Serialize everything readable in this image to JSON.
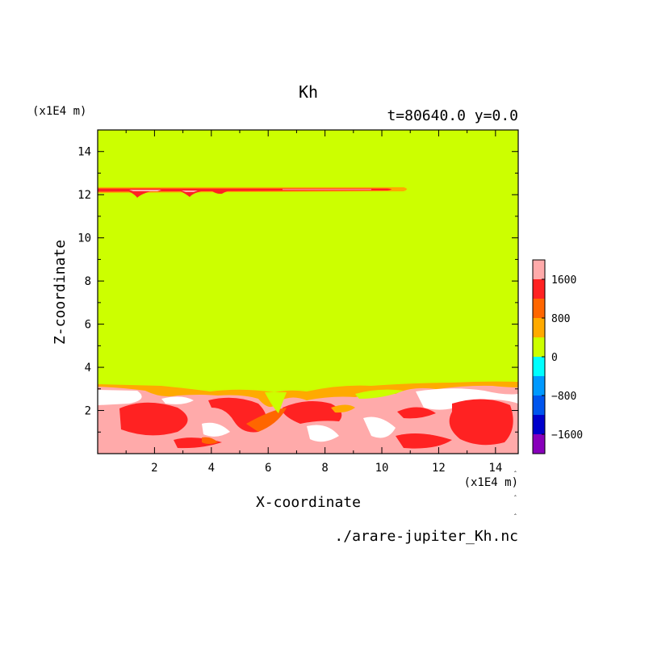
{
  "chart_data": {
    "type": "heatmap",
    "title": "Kh",
    "subtitle": "t=80640.0 y=0.0",
    "xlabel": "X-coordinate",
    "ylabel": "Z-coordinate",
    "x_unit": "(x1E4 m)",
    "y_unit": "(x1E4 m)",
    "footer": "./arare-jupiter_Kh.nc",
    "xlim": [
      0,
      14.8
    ],
    "ylim": [
      0,
      15
    ],
    "x_ticks": [
      2,
      4,
      6,
      8,
      10,
      12,
      14
    ],
    "y_ticks": [
      2,
      4,
      6,
      8,
      10,
      12,
      14
    ],
    "grid": false,
    "background_level_color": "#ccff00",
    "colorbar": {
      "position": "right",
      "levels": [
        {
          "range": [
            -2000,
            -1600
          ],
          "color": "#8800bb"
        },
        {
          "range": [
            -1600,
            -1200
          ],
          "color": "#0000cc"
        },
        {
          "range": [
            -1200,
            -800
          ],
          "color": "#0055ee"
        },
        {
          "range": [
            -800,
            -400
          ],
          "color": "#0099ff"
        },
        {
          "range": [
            -400,
            0
          ],
          "color": "#00ffff"
        },
        {
          "range": [
            0,
            400
          ],
          "color": "#ccff00"
        },
        {
          "range": [
            400,
            800
          ],
          "color": "#ffaa00"
        },
        {
          "range": [
            800,
            1200
          ],
          "color": "#ff6600"
        },
        {
          "range": [
            1200,
            1600
          ],
          "color": "#ff2222"
        },
        {
          "range": [
            1600,
            2000
          ],
          "color": "#ffaaaa"
        }
      ],
      "tick_labels": [
        "1600",
        "800",
        "0",
        "−800",
        "−1600"
      ],
      "tick_values": [
        1600,
        800,
        0,
        -800,
        -1600
      ]
    },
    "features": [
      {
        "name": "upper layer streak",
        "z": 12.2,
        "x_range": [
          0,
          11
        ],
        "values": [
          1200,
          1600,
          2000
        ]
      },
      {
        "name": "boundary turbulent layer",
        "z_range": [
          0,
          3.4
        ],
        "x_range": [
          0,
          14.8
        ],
        "values": [
          400,
          800,
          1200,
          1600,
          2000
        ]
      }
    ]
  }
}
